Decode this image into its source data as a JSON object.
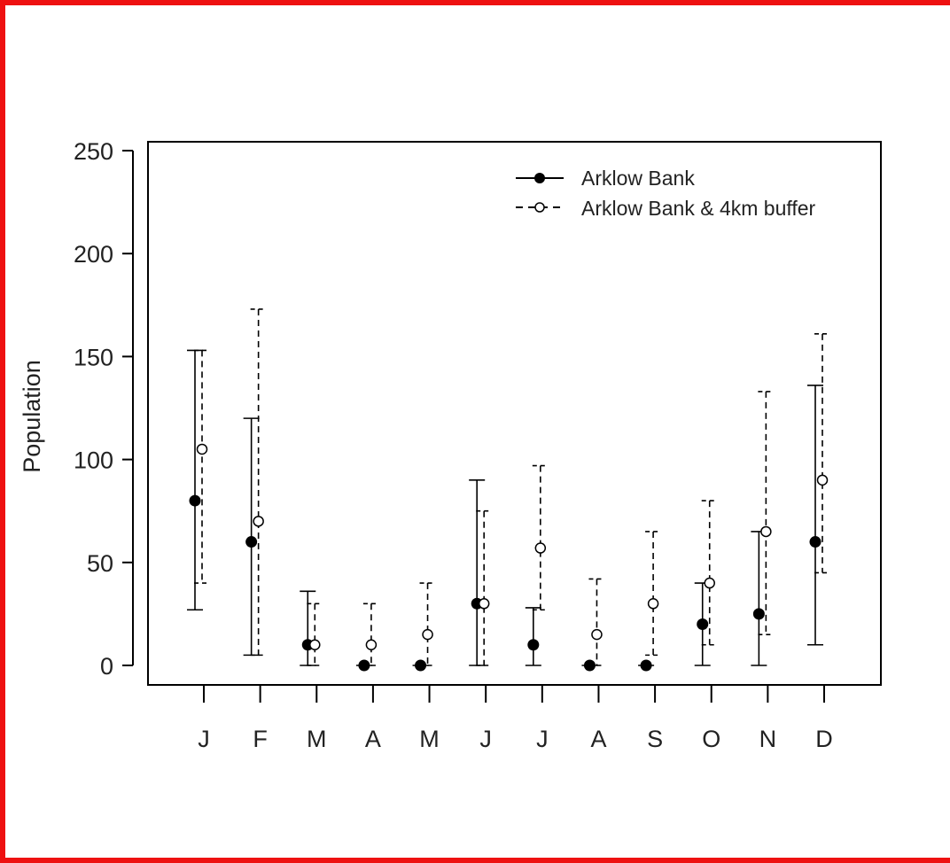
{
  "chart_data": {
    "type": "errorbar",
    "title": "",
    "xlabel": "",
    "ylabel": "Population",
    "ylim": [
      -10,
      255
    ],
    "yticks": [
      0,
      50,
      100,
      150,
      200,
      250
    ],
    "categories": [
      "J",
      "F",
      "M",
      "A",
      "M",
      "J",
      "J",
      "A",
      "S",
      "O",
      "N",
      "D"
    ],
    "legend": {
      "placement": "top-right"
    },
    "series": [
      {
        "name": "Arklow Bank",
        "marker": "filled-circle",
        "line": "solid",
        "color": "#000000",
        "values": [
          80,
          60,
          10,
          0,
          0,
          30,
          10,
          0,
          0,
          20,
          25,
          60
        ],
        "lower": [
          27,
          5,
          0,
          0,
          0,
          0,
          0,
          0,
          0,
          0,
          0,
          10
        ],
        "upper": [
          153,
          120,
          36,
          0,
          0,
          90,
          28,
          0,
          0,
          40,
          65,
          136
        ]
      },
      {
        "name": "Arklow Bank & 4km buffer",
        "marker": "open-circle",
        "line": "dashed",
        "color": "#000000",
        "values": [
          105,
          70,
          10,
          10,
          15,
          30,
          57,
          15,
          30,
          40,
          65,
          90
        ],
        "lower": [
          40,
          5,
          0,
          0,
          0,
          0,
          27,
          0,
          5,
          10,
          15,
          45
        ],
        "upper": [
          153,
          173,
          30,
          30,
          40,
          75,
          97,
          42,
          65,
          80,
          133,
          161
        ]
      }
    ]
  }
}
